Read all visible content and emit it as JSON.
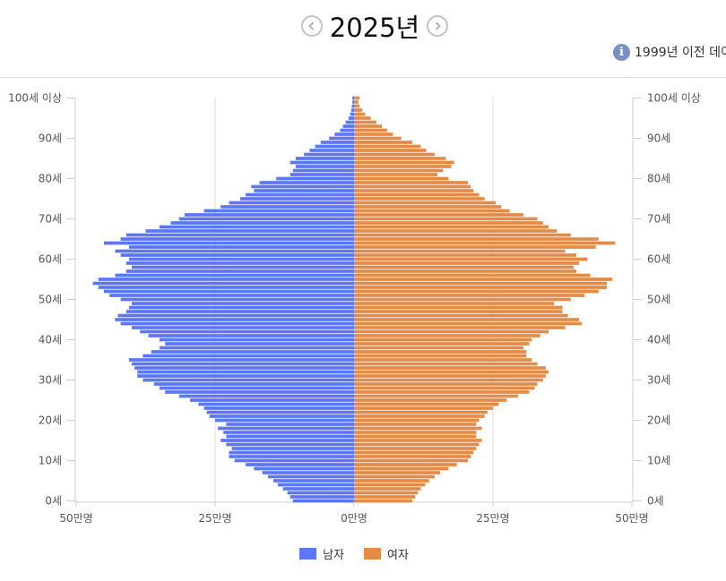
{
  "header": {
    "year_title": "2025년",
    "notice_text": "1999년 이전 데이",
    "prev_icon": "chevron-left-icon",
    "next_icon": "chevron-right-icon",
    "info_icon": "info-icon"
  },
  "colors": {
    "male": "#5b76f7",
    "female": "#e58b45",
    "axis": "#cfcfcf",
    "grid": "#dddddd",
    "label": "#555555"
  },
  "chart_data": {
    "type": "bar",
    "orientation": "horizontal-butterfly",
    "unit": "만명",
    "ages": [
      0,
      1,
      2,
      3,
      4,
      5,
      6,
      7,
      8,
      9,
      10,
      11,
      12,
      13,
      14,
      15,
      16,
      17,
      18,
      19,
      20,
      21,
      22,
      23,
      24,
      25,
      26,
      27,
      28,
      29,
      30,
      31,
      32,
      33,
      34,
      35,
      36,
      37,
      38,
      39,
      40,
      41,
      42,
      43,
      44,
      45,
      46,
      47,
      48,
      49,
      50,
      51,
      52,
      53,
      54,
      55,
      56,
      57,
      58,
      59,
      60,
      61,
      62,
      63,
      64,
      65,
      66,
      67,
      68,
      69,
      70,
      71,
      72,
      73,
      74,
      75,
      76,
      77,
      78,
      79,
      80,
      81,
      82,
      83,
      84,
      85,
      86,
      87,
      88,
      89,
      90,
      91,
      92,
      93,
      94,
      95,
      96,
      97,
      98,
      99,
      100
    ],
    "series": [
      {
        "name": "남자",
        "values": [
          11.0,
          11.5,
          12.0,
          12.8,
          13.7,
          14.5,
          15.5,
          16.5,
          18.0,
          19.5,
          21.5,
          22.5,
          22.5,
          22.0,
          23.0,
          24.0,
          23.0,
          23.5,
          24.5,
          23.0,
          25.0,
          26.0,
          26.5,
          27.0,
          28.0,
          29.5,
          31.5,
          34.0,
          35.0,
          36.0,
          38.0,
          39.0,
          39.0,
          39.5,
          40.0,
          40.5,
          38.0,
          36.5,
          35.0,
          34.0,
          35.0,
          37.0,
          38.5,
          40.0,
          42.0,
          43.0,
          42.5,
          41.0,
          40.5,
          40.0,
          42.0,
          44.0,
          45.0,
          46.0,
          47.0,
          46.0,
          43.0,
          41.0,
          40.0,
          41.0,
          40.5,
          42.0,
          43.0,
          40.5,
          45.0,
          42.0,
          41.0,
          37.5,
          35.0,
          33.0,
          31.5,
          30.5,
          27.0,
          24.0,
          22.5,
          20.5,
          19.5,
          18.0,
          18.5,
          17.0,
          14.0,
          11.5,
          11.0,
          10.5,
          11.5,
          10.5,
          9.0,
          8.0,
          7.0,
          6.0,
          4.5,
          3.5,
          2.5,
          2.0,
          1.5,
          1.0,
          0.7,
          0.5,
          0.4,
          0.3,
          0.3
        ]
      },
      {
        "name": "여자",
        "values": [
          10.5,
          11.0,
          11.5,
          12.0,
          12.8,
          13.5,
          14.5,
          15.5,
          17.0,
          18.5,
          20.5,
          21.0,
          21.5,
          22.0,
          22.5,
          23.0,
          22.0,
          22.0,
          23.0,
          22.0,
          22.5,
          23.5,
          24.0,
          25.0,
          26.0,
          27.5,
          29.5,
          31.5,
          32.5,
          33.0,
          34.0,
          34.5,
          35.0,
          34.5,
          33.0,
          32.0,
          31.0,
          31.0,
          30.5,
          31.5,
          32.0,
          33.5,
          35.0,
          38.0,
          41.0,
          40.5,
          38.5,
          37.5,
          37.5,
          36.0,
          39.0,
          41.5,
          44.0,
          45.5,
          45.5,
          46.5,
          42.5,
          40.0,
          39.5,
          40.5,
          42.0,
          40.0,
          38.0,
          43.5,
          47.0,
          44.0,
          39.0,
          36.5,
          35.0,
          34.0,
          33.0,
          30.5,
          28.0,
          26.5,
          25.5,
          23.5,
          22.5,
          21.5,
          21.0,
          20.5,
          17.0,
          15.0,
          16.0,
          17.5,
          18.0,
          16.5,
          14.5,
          13.0,
          12.0,
          10.5,
          8.5,
          7.0,
          6.0,
          5.0,
          4.0,
          3.0,
          2.0,
          1.5,
          1.0,
          0.8,
          1.0
        ]
      }
    ],
    "xlim": [
      -50,
      50
    ],
    "x_tick_labels": [
      "50만명",
      "25만명",
      "0만명",
      "25만명",
      "50만명"
    ],
    "y_tick_labels": [
      "0세",
      "10세",
      "20세",
      "30세",
      "40세",
      "50세",
      "60세",
      "70세",
      "80세",
      "90세",
      "100세 이상"
    ],
    "grid": true,
    "legend_position": "bottom"
  }
}
